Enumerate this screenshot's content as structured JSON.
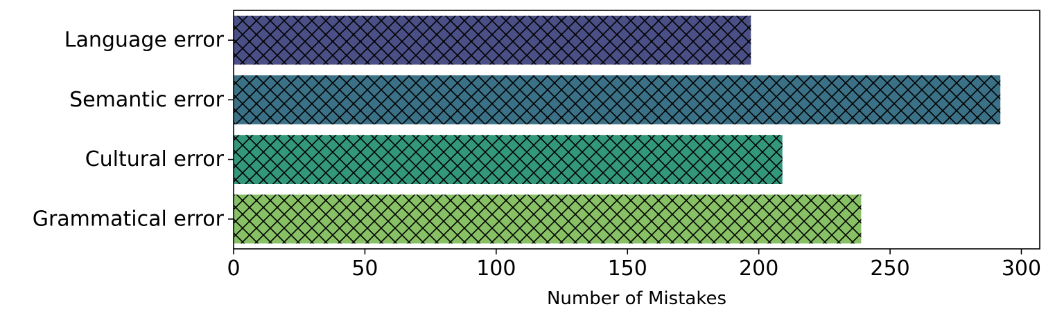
{
  "chart_data": {
    "type": "bar",
    "orientation": "horizontal",
    "categories": [
      "Language error",
      "Semantic error",
      "Cultural error",
      "Grammatical error"
    ],
    "values": [
      197,
      292,
      209,
      239
    ],
    "colors": [
      "#4a4f86",
      "#3b7186",
      "#33987a",
      "#87c065"
    ],
    "hatch": "cross-diagonal",
    "xlabel": "Number of Mistakes",
    "ylabel": "",
    "xlim": [
      0,
      307
    ],
    "xticks": [
      0,
      50,
      100,
      150,
      200,
      250,
      300
    ],
    "grid": false,
    "legend": "none"
  }
}
